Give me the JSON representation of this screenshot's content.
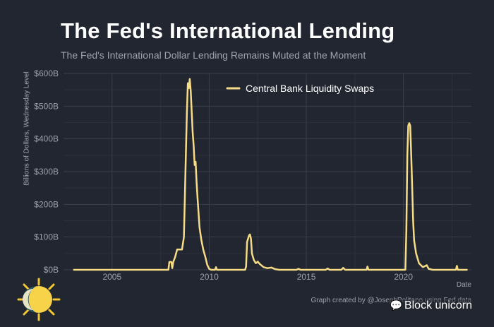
{
  "title": "The Fed's International Lending",
  "subtitle": "The Fed's International Dollar Lending Remains Muted at the Moment",
  "caption": "Graph created by @JosephPolitano using Fed data",
  "watermark": {
    "text": "Block unicorn",
    "icon": "wechat-icon"
  },
  "colors": {
    "background": "#222630",
    "line": "#f6dc87",
    "grid": "#3a3f4b",
    "text": "#9da2ab"
  },
  "chart_data": {
    "type": "line",
    "title": "The Fed's International Lending",
    "subtitle": "The Fed's International Dollar Lending Remains Muted at the Moment",
    "xlabel": "Date",
    "ylabel": "Billions of Dollars, Wednesday Level",
    "xlim": [
      2002.5,
      2023.5
    ],
    "ylim": [
      0,
      600
    ],
    "x_ticks": [
      2005,
      2010,
      2015,
      2020
    ],
    "x_tick_labels": [
      "2005",
      "2010",
      "2015",
      "2020"
    ],
    "y_ticks": [
      0,
      100,
      200,
      300,
      400,
      500,
      600
    ],
    "y_tick_labels": [
      "$0B",
      "$100B",
      "$200B",
      "$300B",
      "$400B",
      "$500B",
      "$600B"
    ],
    "grid": true,
    "legend": {
      "position": "top-right",
      "entries": [
        "Central Bank Liquidity Swaps"
      ]
    },
    "series": [
      {
        "name": "Central Bank Liquidity Swaps",
        "color": "#f6dc87",
        "points": [
          [
            2003.0,
            0
          ],
          [
            2007.9,
            0
          ],
          [
            2007.95,
            24
          ],
          [
            2008.05,
            24
          ],
          [
            2008.1,
            5
          ],
          [
            2008.15,
            24
          ],
          [
            2008.25,
            40
          ],
          [
            2008.35,
            62
          ],
          [
            2008.6,
            62
          ],
          [
            2008.7,
            100
          ],
          [
            2008.78,
            300
          ],
          [
            2008.85,
            480
          ],
          [
            2008.9,
            570
          ],
          [
            2008.95,
            555
          ],
          [
            2009.0,
            583
          ],
          [
            2009.05,
            545
          ],
          [
            2009.1,
            480
          ],
          [
            2009.15,
            420
          ],
          [
            2009.2,
            380
          ],
          [
            2009.25,
            320
          ],
          [
            2009.3,
            330
          ],
          [
            2009.35,
            270
          ],
          [
            2009.4,
            220
          ],
          [
            2009.5,
            130
          ],
          [
            2009.6,
            90
          ],
          [
            2009.7,
            60
          ],
          [
            2009.8,
            40
          ],
          [
            2009.9,
            15
          ],
          [
            2010.0,
            3
          ],
          [
            2010.1,
            0
          ],
          [
            2010.3,
            0
          ],
          [
            2010.35,
            8
          ],
          [
            2010.4,
            0
          ],
          [
            2011.85,
            0
          ],
          [
            2011.9,
            10
          ],
          [
            2011.95,
            85
          ],
          [
            2012.05,
            105
          ],
          [
            2012.1,
            108
          ],
          [
            2012.15,
            95
          ],
          [
            2012.2,
            50
          ],
          [
            2012.3,
            30
          ],
          [
            2012.4,
            20
          ],
          [
            2012.5,
            25
          ],
          [
            2012.6,
            18
          ],
          [
            2012.8,
            8
          ],
          [
            2013.0,
            5
          ],
          [
            2013.2,
            7
          ],
          [
            2013.4,
            2
          ],
          [
            2013.6,
            0
          ],
          [
            2014.5,
            0
          ],
          [
            2014.6,
            3
          ],
          [
            2014.7,
            0
          ],
          [
            2016.0,
            0
          ],
          [
            2016.1,
            4
          ],
          [
            2016.2,
            0
          ],
          [
            2016.8,
            0
          ],
          [
            2016.9,
            6
          ],
          [
            2017.0,
            0
          ],
          [
            2018.1,
            0
          ],
          [
            2018.15,
            10
          ],
          [
            2018.2,
            0
          ],
          [
            2019.9,
            0
          ],
          [
            2020.1,
            0
          ],
          [
            2020.15,
            120
          ],
          [
            2020.2,
            350
          ],
          [
            2020.25,
            440
          ],
          [
            2020.3,
            448
          ],
          [
            2020.35,
            440
          ],
          [
            2020.4,
            350
          ],
          [
            2020.45,
            250
          ],
          [
            2020.5,
            150
          ],
          [
            2020.55,
            90
          ],
          [
            2020.65,
            50
          ],
          [
            2020.8,
            20
          ],
          [
            2021.0,
            8
          ],
          [
            2021.2,
            14
          ],
          [
            2021.3,
            3
          ],
          [
            2021.5,
            0
          ],
          [
            2022.7,
            0
          ],
          [
            2022.75,
            12
          ],
          [
            2022.8,
            0
          ],
          [
            2023.3,
            0
          ]
        ]
      }
    ]
  }
}
